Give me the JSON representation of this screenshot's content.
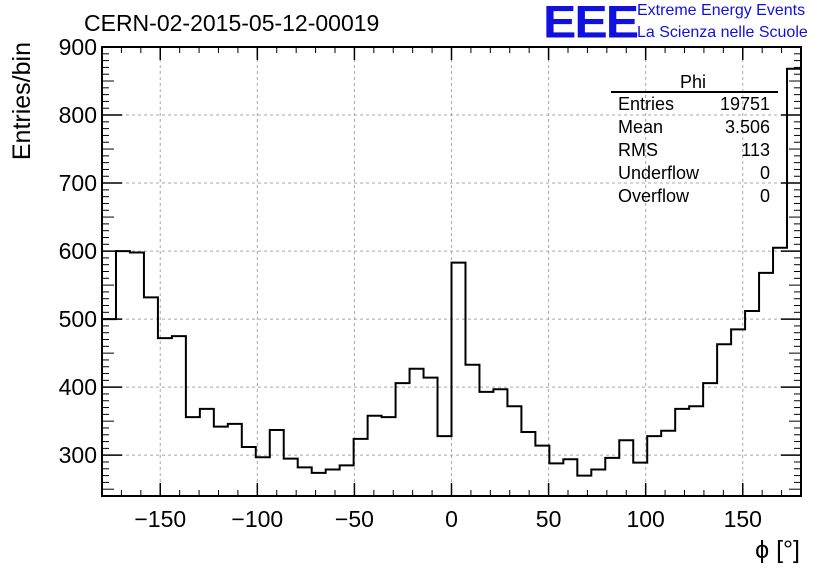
{
  "header": {
    "run_title": "CERN-02-2015-05-12-00019",
    "logo_text": "EEE",
    "logo_line1": "Extreme Energy Events",
    "logo_line2": "La Scienza nelle Scuole",
    "logo_color": "#1010e0"
  },
  "stats_box": {
    "title": "Phi",
    "rows": [
      {
        "label": "Entries",
        "value": "19751"
      },
      {
        "label": "Mean",
        "value": "3.506"
      },
      {
        "label": "RMS",
        "value": "113"
      },
      {
        "label": "Underflow",
        "value": "0"
      },
      {
        "label": "Overflow",
        "value": "0"
      }
    ]
  },
  "chart_data": {
    "type": "histogram",
    "title": "CERN-02-2015-05-12-00019",
    "xlabel": "ϕ [°]",
    "ylabel": "Entries/bin",
    "xlim": [
      -180,
      180
    ],
    "ylim": [
      240,
      900
    ],
    "bin_width": 7.2,
    "x_ticks": [
      -150,
      -100,
      -50,
      0,
      50,
      100,
      150
    ],
    "x_tick_labels": [
      "−150",
      "−100",
      "−50",
      "0",
      "50",
      "100",
      "150"
    ],
    "y_ticks": [
      300,
      400,
      500,
      600,
      700,
      800,
      900
    ],
    "y_tick_labels": [
      "300",
      "400",
      "500",
      "600",
      "700",
      "800",
      "900"
    ],
    "grid": true,
    "line_color": "#000000",
    "values": [
      500,
      600,
      598,
      532,
      472,
      475,
      356,
      368,
      342,
      346,
      312,
      297,
      337,
      295,
      282,
      274,
      279,
      285,
      324,
      358,
      356,
      406,
      427,
      414,
      328,
      583,
      433,
      393,
      397,
      372,
      334,
      314,
      288,
      294,
      270,
      279,
      296,
      322,
      289,
      328,
      336,
      368,
      372,
      406,
      463,
      485,
      512,
      568,
      605,
      868
    ]
  }
}
